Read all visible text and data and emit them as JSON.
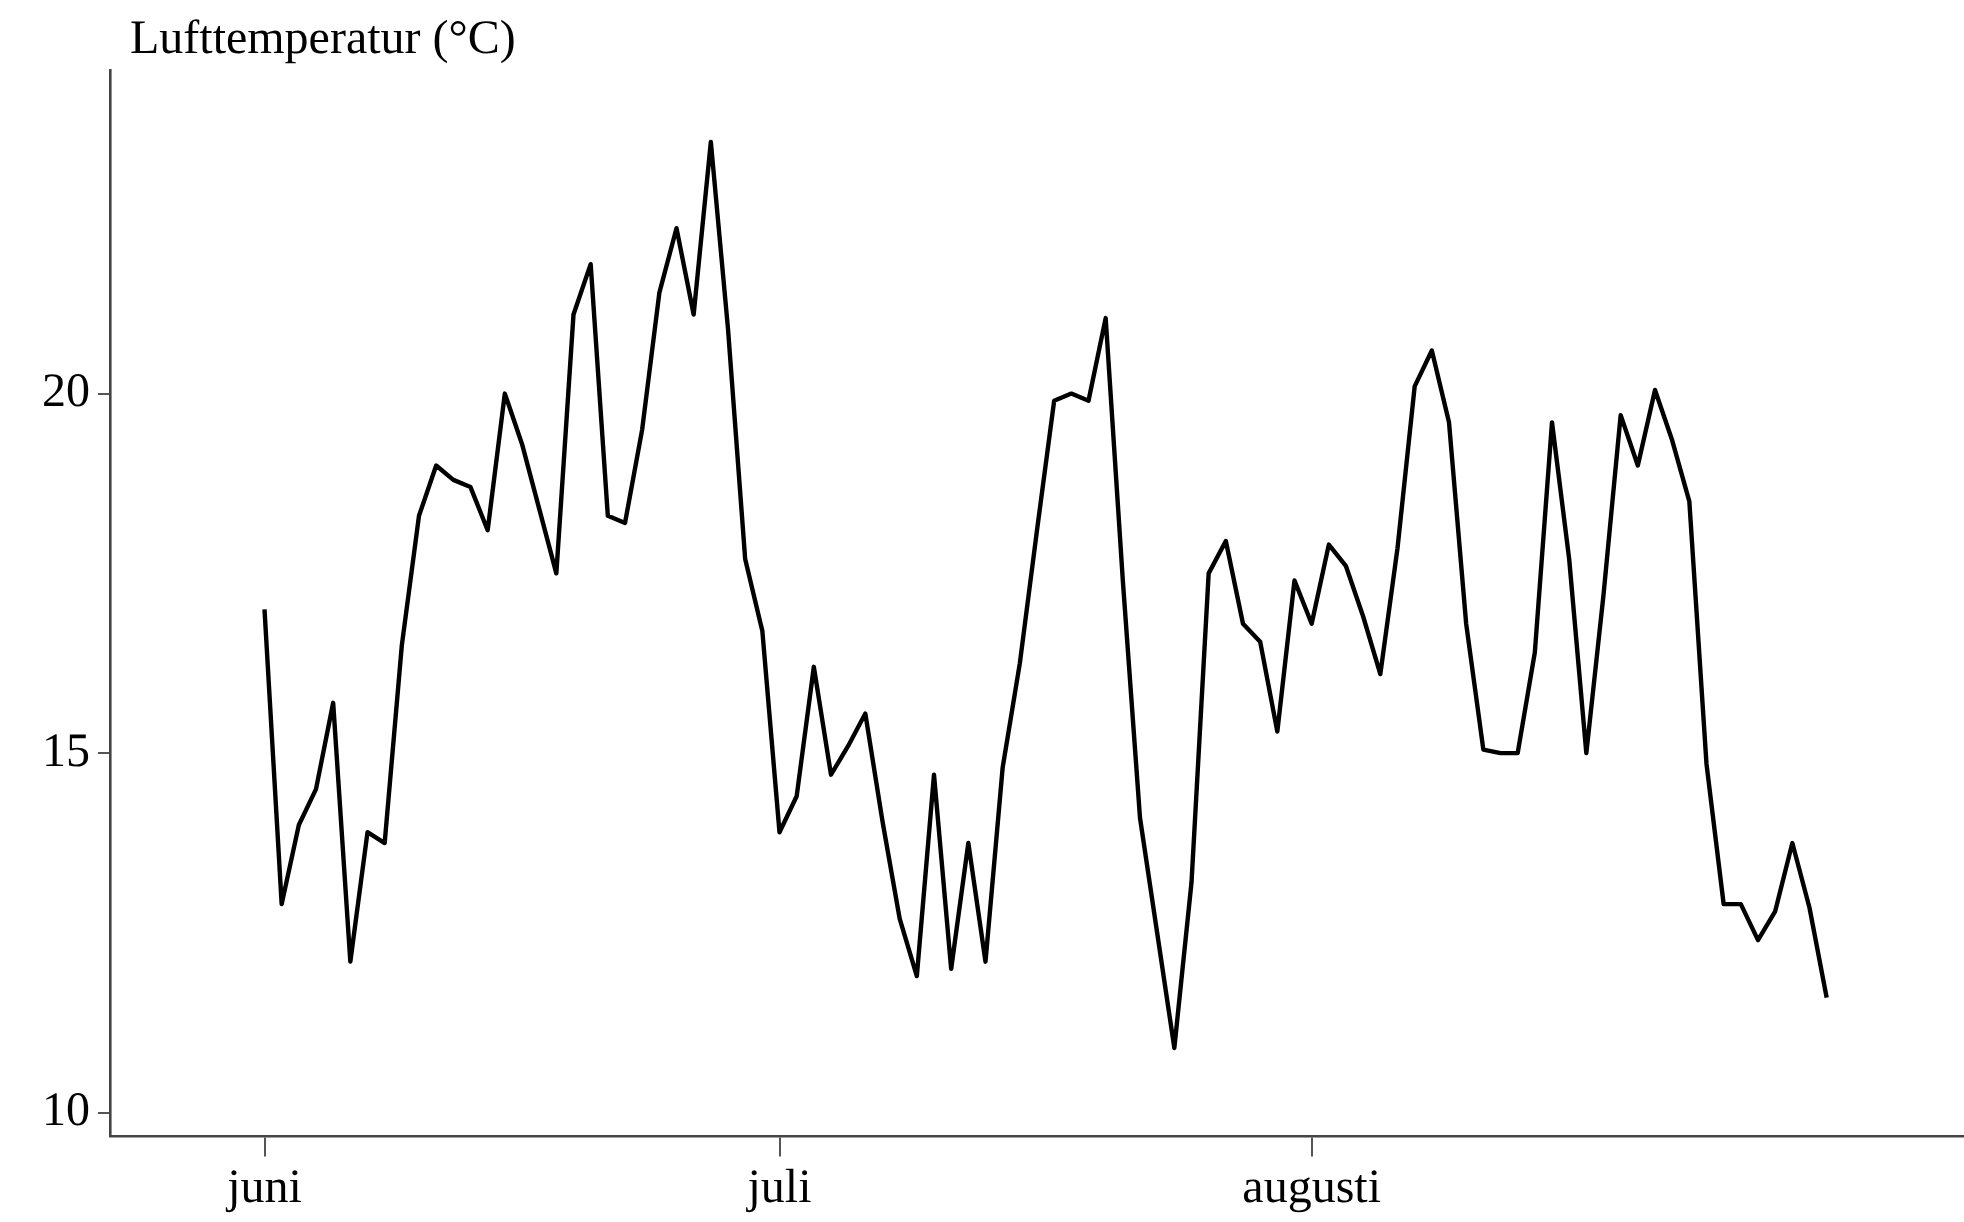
{
  "chart_data": {
    "type": "line",
    "ylabel": "Lufttemperatur (°C)",
    "x": [
      "--06-01",
      "--06-02",
      "--06-03",
      "--06-04",
      "--06-05",
      "--06-06",
      "--06-07",
      "--06-08",
      "--06-09",
      "--06-10",
      "--06-11",
      "--06-12",
      "--06-13",
      "--06-14",
      "--06-15",
      "--06-16",
      "--06-17",
      "--06-18",
      "--06-19",
      "--06-20",
      "--06-21",
      "--06-22",
      "--06-23",
      "--06-24",
      "--06-25",
      "--06-26",
      "--06-27",
      "--06-28",
      "--06-29",
      "--06-30",
      "--07-01",
      "--07-02",
      "--07-03",
      "--07-04",
      "--07-05",
      "--07-06",
      "--07-07",
      "--07-08",
      "--07-09",
      "--07-10",
      "--07-11",
      "--07-12",
      "--07-13",
      "--07-14",
      "--07-15",
      "--07-16",
      "--07-17",
      "--07-18",
      "--07-19",
      "--07-20",
      "--07-21",
      "--07-22",
      "--07-23",
      "--07-24",
      "--07-25",
      "--07-26",
      "--07-27",
      "--07-28",
      "--07-29",
      "--07-30",
      "--07-31",
      "--08-01",
      "--08-02",
      "--08-03",
      "--08-04",
      "--08-05",
      "--08-06",
      "--08-07",
      "--08-08",
      "--08-09",
      "--08-10",
      "--08-11",
      "--08-12",
      "--08-13",
      "--08-14",
      "--08-15",
      "--08-16",
      "--08-17",
      "--08-18",
      "--08-19",
      "--08-20",
      "--08-21",
      "--08-22",
      "--08-23",
      "--08-24",
      "--08-25",
      "--08-26",
      "--08-27",
      "--08-28",
      "--08-29",
      "--08-30",
      "--08-31"
    ],
    "series": [
      {
        "color": "#000000",
        "values": [
          17.0,
          12.9,
          14.0,
          14.5,
          15.7,
          12.1,
          13.9,
          13.75,
          16.5,
          18.3,
          19.0,
          18.8,
          18.7,
          18.1,
          20.0,
          19.3,
          18.4,
          17.5,
          21.1,
          21.8,
          18.3,
          18.2,
          19.5,
          21.4,
          22.3,
          21.1,
          23.5,
          20.9,
          17.7,
          16.7,
          13.9,
          14.4,
          16.2,
          14.7,
          15.1,
          15.55,
          14.05,
          12.7,
          11.9,
          14.7,
          12.0,
          13.75,
          12.1,
          14.8,
          16.25,
          18.1,
          19.9,
          20.0,
          19.9,
          21.05,
          17.4,
          14.1,
          12.5,
          10.9,
          13.2,
          17.5,
          17.95,
          16.8,
          16.55,
          15.3,
          17.4,
          16.8,
          17.9,
          17.6,
          16.9,
          16.1,
          17.85,
          20.1,
          20.6,
          19.6,
          16.8,
          15.05,
          15.0,
          15.0,
          16.4,
          19.6,
          17.7,
          15.0,
          17.2,
          19.7,
          19.0,
          20.05,
          19.35,
          18.5,
          14.85,
          12.9,
          12.9,
          12.4,
          12.8,
          13.75,
          12.85,
          11.6
        ]
      }
    ],
    "xlim": [
      "--05-23",
      "--09-08"
    ],
    "xticks": [
      {
        "value": "--06-01",
        "label": "juni"
      },
      {
        "value": "--07-01",
        "label": "juli"
      },
      {
        "value": "--08-01",
        "label": "augusti"
      }
    ],
    "ylim": [
      9.67,
      24.5
    ],
    "yticks": [
      10,
      15,
      20
    ],
    "grid": false,
    "legend": false,
    "marker": "none",
    "line_style": "solid"
  }
}
